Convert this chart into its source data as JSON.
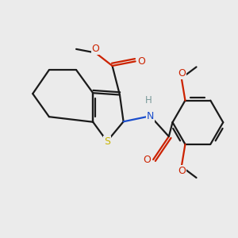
{
  "bg": "#ebebeb",
  "bc": "#1a1a1a",
  "sc": "#c8b400",
  "nc": "#1a4dcc",
  "oc": "#cc2200",
  "hc": "#7a9a9a",
  "lw": 1.6,
  "fs": 9.0,
  "dpi": 100,
  "figsize": [
    3.0,
    3.0
  ],
  "xlim": [
    -2.6,
    3.8
  ],
  "ylim": [
    -2.8,
    2.2
  ]
}
